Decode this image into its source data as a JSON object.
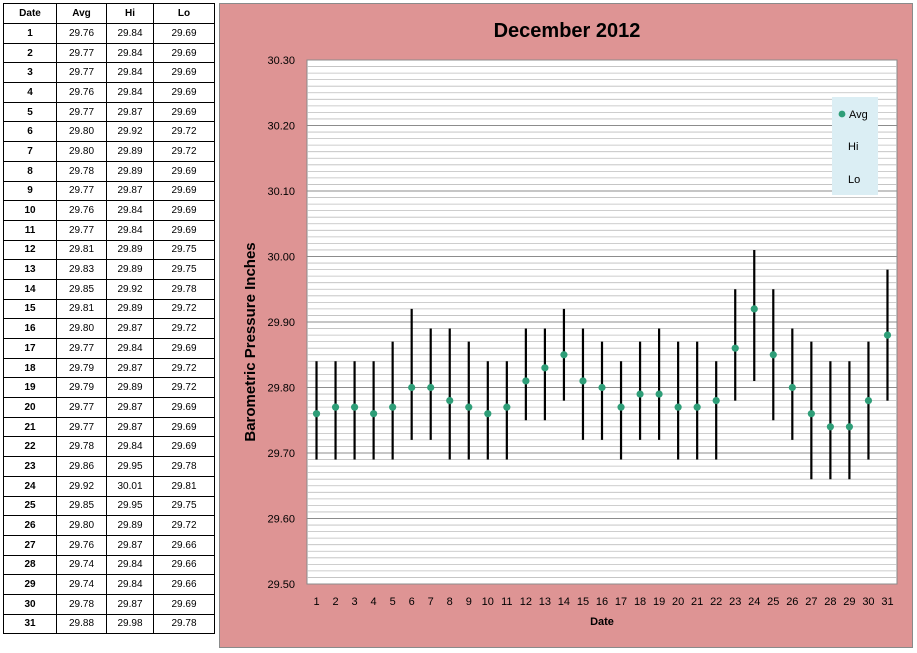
{
  "table": {
    "headers": [
      "Date",
      "Avg",
      "Hi",
      "Lo"
    ],
    "rows": [
      [
        "1",
        "29.76",
        "29.84",
        "29.69"
      ],
      [
        "2",
        "29.77",
        "29.84",
        "29.69"
      ],
      [
        "3",
        "29.77",
        "29.84",
        "29.69"
      ],
      [
        "4",
        "29.76",
        "29.84",
        "29.69"
      ],
      [
        "5",
        "29.77",
        "29.87",
        "29.69"
      ],
      [
        "6",
        "29.80",
        "29.92",
        "29.72"
      ],
      [
        "7",
        "29.80",
        "29.89",
        "29.72"
      ],
      [
        "8",
        "29.78",
        "29.89",
        "29.69"
      ],
      [
        "9",
        "29.77",
        "29.87",
        "29.69"
      ],
      [
        "10",
        "29.76",
        "29.84",
        "29.69"
      ],
      [
        "11",
        "29.77",
        "29.84",
        "29.69"
      ],
      [
        "12",
        "29.81",
        "29.89",
        "29.75"
      ],
      [
        "13",
        "29.83",
        "29.89",
        "29.75"
      ],
      [
        "14",
        "29.85",
        "29.92",
        "29.78"
      ],
      [
        "15",
        "29.81",
        "29.89",
        "29.72"
      ],
      [
        "16",
        "29.80",
        "29.87",
        "29.72"
      ],
      [
        "17",
        "29.77",
        "29.84",
        "29.69"
      ],
      [
        "18",
        "29.79",
        "29.87",
        "29.72"
      ],
      [
        "19",
        "29.79",
        "29.89",
        "29.72"
      ],
      [
        "20",
        "29.77",
        "29.87",
        "29.69"
      ],
      [
        "21",
        "29.77",
        "29.87",
        "29.69"
      ],
      [
        "22",
        "29.78",
        "29.84",
        "29.69"
      ],
      [
        "23",
        "29.86",
        "29.95",
        "29.78"
      ],
      [
        "24",
        "29.92",
        "30.01",
        "29.81"
      ],
      [
        "25",
        "29.85",
        "29.95",
        "29.75"
      ],
      [
        "26",
        "29.80",
        "29.89",
        "29.72"
      ],
      [
        "27",
        "29.76",
        "29.87",
        "29.66"
      ],
      [
        "28",
        "29.74",
        "29.84",
        "29.66"
      ],
      [
        "29",
        "29.74",
        "29.84",
        "29.66"
      ],
      [
        "30",
        "29.78",
        "29.87",
        "29.69"
      ],
      [
        "31",
        "29.88",
        "29.98",
        "29.78"
      ]
    ]
  },
  "chart_data": {
    "type": "scatter",
    "title": "December 2012",
    "xlabel": "Date",
    "ylabel": "Barometric Pressure Inches",
    "x": [
      1,
      2,
      3,
      4,
      5,
      6,
      7,
      8,
      9,
      10,
      11,
      12,
      13,
      14,
      15,
      16,
      17,
      18,
      19,
      20,
      21,
      22,
      23,
      24,
      25,
      26,
      27,
      28,
      29,
      30,
      31
    ],
    "series": [
      {
        "name": "Avg",
        "values": [
          29.76,
          29.77,
          29.77,
          29.76,
          29.77,
          29.8,
          29.8,
          29.78,
          29.77,
          29.76,
          29.77,
          29.81,
          29.83,
          29.85,
          29.81,
          29.8,
          29.77,
          29.79,
          29.79,
          29.77,
          29.77,
          29.78,
          29.86,
          29.92,
          29.85,
          29.8,
          29.76,
          29.74,
          29.74,
          29.78,
          29.88
        ]
      },
      {
        "name": "Hi",
        "values": [
          29.84,
          29.84,
          29.84,
          29.84,
          29.87,
          29.92,
          29.89,
          29.89,
          29.87,
          29.84,
          29.84,
          29.89,
          29.89,
          29.92,
          29.89,
          29.87,
          29.84,
          29.87,
          29.89,
          29.87,
          29.87,
          29.84,
          29.95,
          30.01,
          29.95,
          29.89,
          29.87,
          29.84,
          29.84,
          29.87,
          29.98
        ]
      },
      {
        "name": "Lo",
        "values": [
          29.69,
          29.69,
          29.69,
          29.69,
          29.69,
          29.72,
          29.72,
          29.69,
          29.69,
          29.69,
          29.69,
          29.75,
          29.75,
          29.78,
          29.72,
          29.72,
          29.69,
          29.72,
          29.72,
          29.69,
          29.69,
          29.69,
          29.78,
          29.81,
          29.75,
          29.72,
          29.66,
          29.66,
          29.66,
          29.69,
          29.78
        ]
      }
    ],
    "ylim": [
      29.5,
      30.3
    ],
    "yticks": [
      "29.50",
      "29.60",
      "29.70",
      "29.80",
      "29.90",
      "30.00",
      "30.10",
      "30.20",
      "30.30"
    ],
    "xticks": [
      "1",
      "2",
      "3",
      "4",
      "5",
      "6",
      "7",
      "8",
      "9",
      "10",
      "11",
      "12",
      "13",
      "14",
      "15",
      "16",
      "17",
      "18",
      "19",
      "20",
      "21",
      "22",
      "23",
      "24",
      "25",
      "26",
      "27",
      "28",
      "29",
      "30",
      "31"
    ],
    "legend_position": "top-right",
    "grid": true,
    "colors": {
      "avg_marker": "#2e9e78",
      "hi_lo_bar": "#000000",
      "panel_bg": "#de9494",
      "plot_bg": "#ffffff",
      "legend_bg": "#dbeef4"
    }
  }
}
